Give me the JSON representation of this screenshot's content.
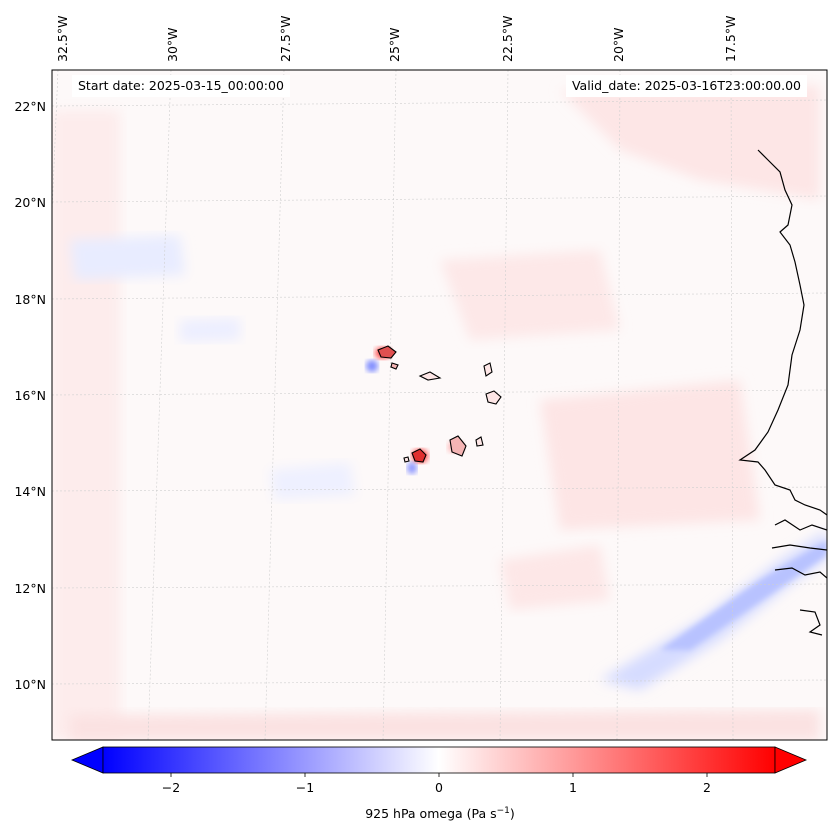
{
  "header": {
    "start_date": "Start date: 2025-03-15_00:00:00",
    "valid_date": "Valid_date: 2025-03-16T23:00:00.00"
  },
  "axes": {
    "lon_labels": [
      "32.5°W",
      "30°W",
      "27.5°W",
      "25°W",
      "22.5°W",
      "20°W",
      "17.5°W"
    ],
    "lat_labels": [
      "22°N",
      "20°N",
      "18°N",
      "16°N",
      "14°N",
      "12°N",
      "10°N"
    ]
  },
  "colorbar": {
    "ticks": [
      "−2",
      "−1",
      "0",
      "1",
      "2"
    ],
    "label_main": "925 hPa omega (Pa s",
    "label_exp": "−1",
    "label_end": ")",
    "range": [
      -2.6,
      2.6
    ],
    "colormap": "bwr"
  },
  "colors": {
    "neg": "#0000ff",
    "pos": "#ff0000",
    "coast": "#000000",
    "grid": "#c8c8c8"
  }
}
